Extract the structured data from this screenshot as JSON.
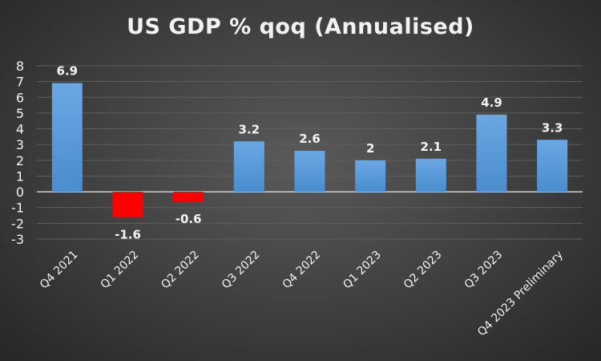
{
  "chart_data": {
    "type": "bar",
    "title": "US GDP % qoq (Annualised)",
    "categories": [
      "Q4 2021",
      "Q1 2022",
      "Q2 2022",
      "Q3 2022",
      "Q4 2022",
      "Q1 2023",
      "Q2 2023",
      "Q3 2023",
      "Q4 2023 Preliminary"
    ],
    "values": [
      6.9,
      -1.6,
      -0.6,
      3.2,
      2.6,
      2,
      2.1,
      4.9,
      3.3
    ],
    "data_labels": [
      "6.9",
      "-1.6",
      "-0.6",
      "3.2",
      "2.6",
      "2",
      "2.1",
      "4.9",
      "3.3"
    ],
    "ylim": [
      -3,
      8
    ],
    "yticks": [
      8,
      7,
      6,
      5,
      4,
      3,
      2,
      1,
      0,
      -1,
      -2,
      -3
    ],
    "grid": true,
    "legend": "none",
    "colors": {
      "positive": "#5b9bd5",
      "negative": "#ff0000",
      "background": "#404040",
      "text": "#f2f2f2"
    }
  }
}
